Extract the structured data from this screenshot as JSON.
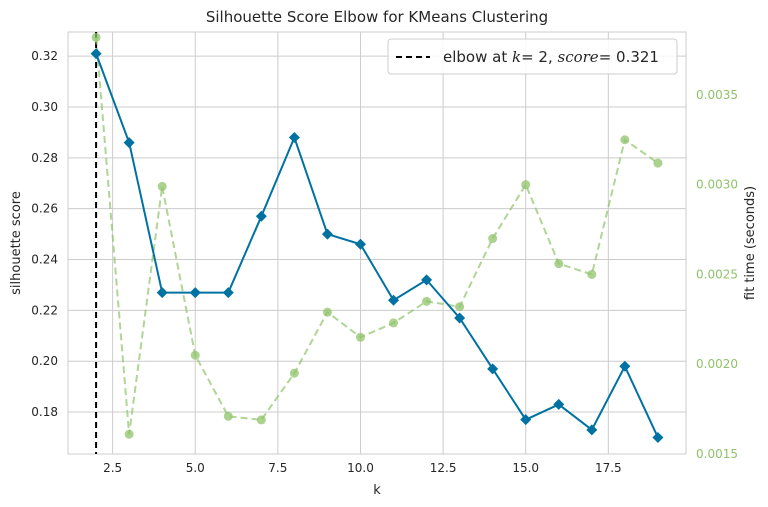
{
  "chart_data": {
    "type": "line",
    "title": "Silhouette Score Elbow for KMeans Clustering",
    "xlabel": "k",
    "ylabel": "silhouette score",
    "y2label": "fit time (seconds)",
    "xlim": [
      1.15,
      19.85
    ],
    "ylim": [
      0.1635,
      0.3295
    ],
    "y2lim": [
      0.0015,
      0.00385
    ],
    "xticks": [
      2.5,
      5.0,
      7.5,
      10.0,
      12.5,
      15.0,
      17.5
    ],
    "xtick_labels": [
      "2.5",
      "5.0",
      "7.5",
      "10.0",
      "12.5",
      "15.0",
      "17.5"
    ],
    "yticks": [
      0.18,
      0.2,
      0.22,
      0.24,
      0.26,
      0.28,
      0.3,
      0.32
    ],
    "ytick_labels": [
      "0.18",
      "0.20",
      "0.22",
      "0.24",
      "0.26",
      "0.28",
      "0.30",
      "0.32"
    ],
    "y2ticks": [
      0.0015,
      0.002,
      0.0025,
      0.003,
      0.0035
    ],
    "y2tick_labels": [
      "0.0015",
      "0.0020",
      "0.0025",
      "0.0030",
      "0.0035"
    ],
    "grid": true,
    "legend_position": "top-right",
    "legend": {
      "prefix": "elbow at ",
      "k_label": "k",
      "k_value": "= 2, ",
      "score_label": "score",
      "score_value": "= 0.321"
    },
    "elbow": {
      "k": 2,
      "score": 0.321
    },
    "series": [
      {
        "name": "silhouette score",
        "axis": "left",
        "color": "#0072a2",
        "marker": "diamond",
        "x": [
          2,
          3,
          4,
          5,
          6,
          7,
          8,
          9,
          10,
          11,
          12,
          13,
          14,
          15,
          16,
          17,
          18,
          19
        ],
        "values": [
          0.321,
          0.286,
          0.227,
          0.227,
          0.227,
          0.257,
          0.288,
          0.25,
          0.246,
          0.224,
          0.232,
          0.217,
          0.197,
          0.177,
          0.183,
          0.173,
          0.198,
          0.17
        ]
      },
      {
        "name": "fit time",
        "axis": "right",
        "color": "#8fc36a",
        "marker": "circle",
        "dashed": true,
        "x": [
          2,
          3,
          4,
          5,
          6,
          7,
          8,
          9,
          10,
          11,
          12,
          13,
          14,
          15,
          16,
          17,
          18,
          19
        ],
        "values": [
          0.00382,
          0.00161,
          0.00299,
          0.00205,
          0.00171,
          0.00169,
          0.00195,
          0.00229,
          0.00215,
          0.00223,
          0.00235,
          0.00232,
          0.0027,
          0.003,
          0.00256,
          0.0025,
          0.00325,
          0.00312
        ]
      }
    ]
  }
}
